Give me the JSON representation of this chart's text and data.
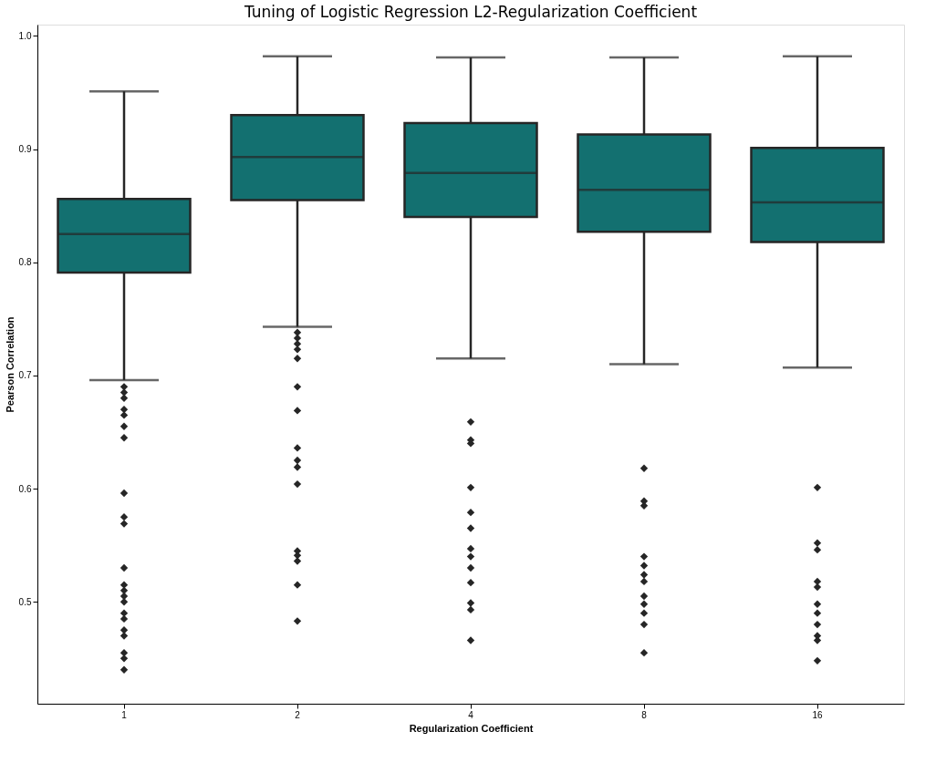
{
  "chart_data": {
    "type": "box",
    "title": "Tuning of Logistic Regression L2-Regularization Coefficient",
    "xlabel": "Regularization Coefficient",
    "ylabel": "Pearson Correlation",
    "categories": [
      "1",
      "2",
      "4",
      "8",
      "16"
    ],
    "color": "#137070",
    "ylim": [
      0.41,
      1.01
    ],
    "yticks": [
      {
        "value": 0.5,
        "label": "0.5"
      },
      {
        "value": 0.6,
        "label": "0.6"
      },
      {
        "value": 0.7,
        "label": "0.7"
      },
      {
        "value": 0.8,
        "label": "0.8"
      },
      {
        "value": 0.9,
        "label": "0.9"
      },
      {
        "value": 1.0,
        "label": "1.0"
      }
    ],
    "grid": false,
    "marker": "diamond",
    "boxes": [
      {
        "low": 0.696,
        "q1": 0.791,
        "median": 0.825,
        "q3": 0.856,
        "high": 0.951,
        "outliers": [
          0.69,
          0.685,
          0.68,
          0.67,
          0.665,
          0.655,
          0.645,
          0.596,
          0.575,
          0.569,
          0.53,
          0.515,
          0.51,
          0.505,
          0.5,
          0.49,
          0.485,
          0.475,
          0.47,
          0.455,
          0.45,
          0.44
        ]
      },
      {
        "low": 0.743,
        "q1": 0.855,
        "median": 0.893,
        "q3": 0.93,
        "high": 0.982,
        "outliers": [
          0.738,
          0.733,
          0.728,
          0.723,
          0.715,
          0.69,
          0.669,
          0.636,
          0.625,
          0.619,
          0.604,
          0.545,
          0.541,
          0.536,
          0.515,
          0.483
        ]
      },
      {
        "low": 0.715,
        "q1": 0.84,
        "median": 0.879,
        "q3": 0.923,
        "high": 0.981,
        "outliers": [
          0.659,
          0.643,
          0.64,
          0.601,
          0.579,
          0.565,
          0.547,
          0.54,
          0.53,
          0.517,
          0.499,
          0.493,
          0.466
        ]
      },
      {
        "low": 0.71,
        "q1": 0.827,
        "median": 0.864,
        "q3": 0.913,
        "high": 0.981,
        "outliers": [
          0.618,
          0.589,
          0.585,
          0.54,
          0.532,
          0.524,
          0.518,
          0.505,
          0.498,
          0.49,
          0.48,
          0.455
        ]
      },
      {
        "low": 0.707,
        "q1": 0.818,
        "median": 0.853,
        "q3": 0.901,
        "high": 0.982,
        "outliers": [
          0.601,
          0.552,
          0.546,
          0.518,
          0.513,
          0.498,
          0.49,
          0.48,
          0.47,
          0.466,
          0.448
        ]
      }
    ]
  }
}
